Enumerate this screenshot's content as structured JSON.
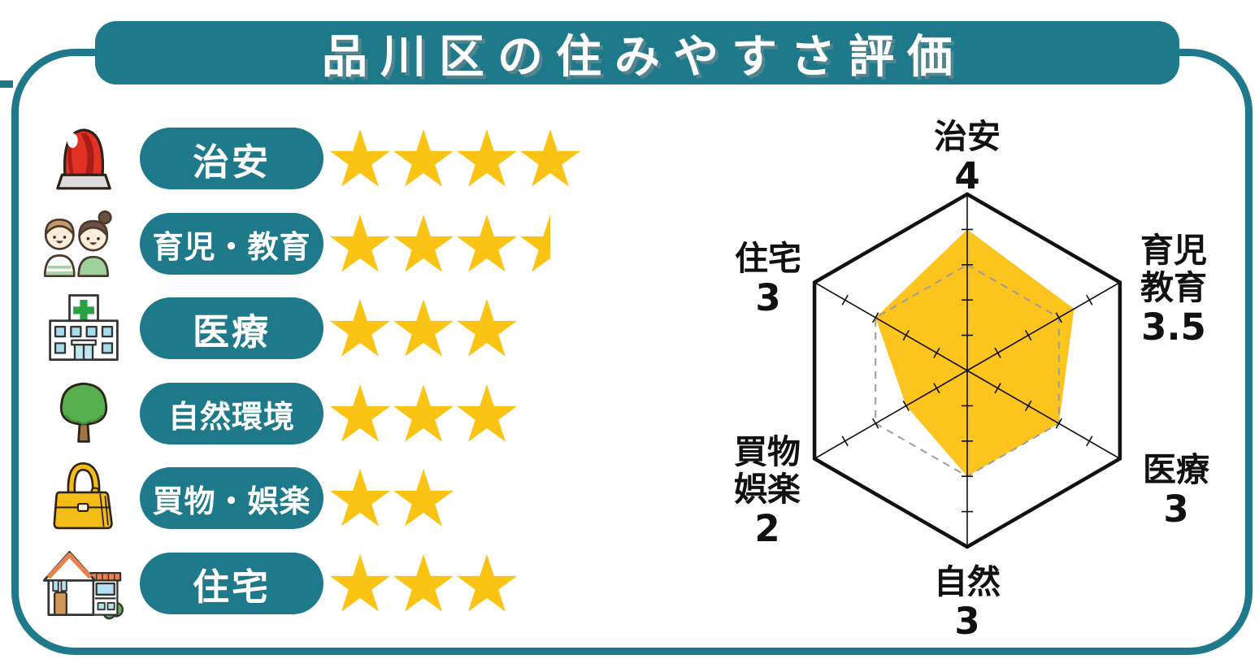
{
  "title": "品川区の住みやすさ評価",
  "colors": {
    "teal": "#1e7a8a",
    "star": "#fbc313",
    "radar_fill": "#fcc41c",
    "dashed": "#9e9e9e",
    "ink": "#111111"
  },
  "categories": [
    {
      "label": "治安",
      "icon": "siren-icon",
      "stars": 4
    },
    {
      "label": "育児・教育",
      "icon": "children-icon",
      "stars": 3.5
    },
    {
      "label": "医療",
      "icon": "hospital-icon",
      "stars": 3
    },
    {
      "label": "自然環境",
      "icon": "tree-icon",
      "stars": 3
    },
    {
      "label": "買物・娯楽",
      "icon": "bag-icon",
      "stars": 2
    },
    {
      "label": "住宅",
      "icon": "house-icon",
      "stars": 3
    }
  ],
  "chart_data": {
    "type": "radar",
    "max": 5,
    "reference_level": 3,
    "grid": "ticks-per-axis",
    "legend": "none",
    "axes": [
      {
        "label": "治安",
        "value": 4
      },
      {
        "label": "育児教育",
        "value": 3.5
      },
      {
        "label": "医療",
        "value": 3
      },
      {
        "label": "自然",
        "value": 3
      },
      {
        "label": "買物娯楽",
        "value": 2
      },
      {
        "label": "住宅",
        "value": 3
      }
    ]
  }
}
